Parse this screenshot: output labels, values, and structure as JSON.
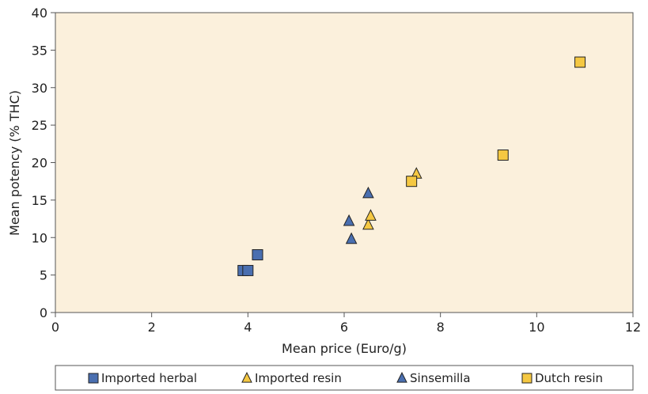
{
  "chart_data": {
    "type": "scatter",
    "title": "",
    "xlabel": "Mean price (Euro/g)",
    "ylabel": "Mean potency (% THC)",
    "xlim": [
      0,
      12
    ],
    "ylim": [
      0,
      40
    ],
    "x_ticks": [
      0,
      2,
      4,
      6,
      8,
      10,
      12
    ],
    "y_ticks": [
      0,
      5,
      10,
      15,
      20,
      25,
      30,
      35,
      40
    ],
    "grid": false,
    "legend_position": "bottom",
    "plot_background": "#fbf0dc",
    "series": [
      {
        "name": "Imported herbal",
        "marker": "square",
        "color": "#4a6fb0",
        "points": [
          {
            "x": 3.9,
            "y": 5.6
          },
          {
            "x": 4.0,
            "y": 5.6
          },
          {
            "x": 4.2,
            "y": 7.7
          }
        ]
      },
      {
        "name": "Imported resin",
        "marker": "triangle",
        "color": "#f5c842",
        "points": [
          {
            "x": 6.5,
            "y": 11.7
          },
          {
            "x": 6.55,
            "y": 12.9
          },
          {
            "x": 7.5,
            "y": 18.5
          }
        ]
      },
      {
        "name": "Sinsemilla",
        "marker": "triangle",
        "color": "#4a6fb0",
        "points": [
          {
            "x": 6.1,
            "y": 12.2
          },
          {
            "x": 6.15,
            "y": 9.8
          },
          {
            "x": 6.5,
            "y": 15.9
          }
        ]
      },
      {
        "name": "Dutch resin",
        "marker": "square",
        "color": "#f5c842",
        "points": [
          {
            "x": 7.4,
            "y": 17.5
          },
          {
            "x": 9.3,
            "y": 21.0
          },
          {
            "x": 10.9,
            "y": 33.4
          }
        ]
      }
    ]
  }
}
